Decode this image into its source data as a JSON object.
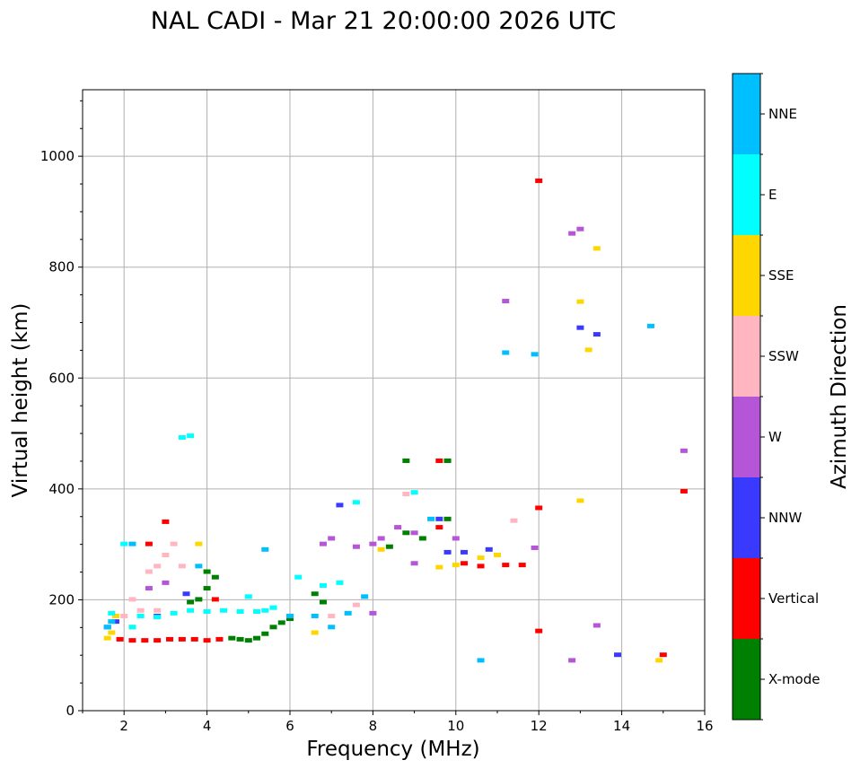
{
  "chart_data": {
    "type": "scatter",
    "title": "NAL CADI - Mar 21 20:00:00 2026 UTC",
    "xlabel": "Frequency (MHz)",
    "ylabel": "Virtual height (km)",
    "xlim": [
      1,
      16
    ],
    "ylim": [
      0,
      1120
    ],
    "xticks": [
      2,
      4,
      6,
      8,
      10,
      12,
      14,
      16
    ],
    "yticks": [
      0,
      200,
      400,
      600,
      800,
      1000
    ],
    "grid": true,
    "colorbar": {
      "label": "Azimuth Direction",
      "categories": [
        {
          "name": "X-mode",
          "color": "#008000"
        },
        {
          "name": "Vertical",
          "color": "#ff0000"
        },
        {
          "name": "NNW",
          "color": "#3a3aff"
        },
        {
          "name": "W",
          "color": "#b556d8"
        },
        {
          "name": "SSW",
          "color": "#ffb6c1"
        },
        {
          "name": "SSE",
          "color": "#ffd700"
        },
        {
          "name": "E",
          "color": "#00ffff"
        },
        {
          "name": "NNE",
          "color": "#00bfff"
        }
      ]
    },
    "series": [
      {
        "name": "X-mode",
        "points": [
          [
            4.6,
            130
          ],
          [
            4.8,
            128
          ],
          [
            5.0,
            126
          ],
          [
            5.2,
            130
          ],
          [
            5.4,
            138
          ],
          [
            5.6,
            150
          ],
          [
            5.8,
            158
          ],
          [
            6.0,
            165
          ],
          [
            4.2,
            240
          ],
          [
            4.0,
            220
          ],
          [
            3.8,
            200
          ],
          [
            3.6,
            195
          ],
          [
            6.6,
            210
          ],
          [
            6.8,
            195
          ],
          [
            8.8,
            450
          ],
          [
            9.8,
            450
          ],
          [
            9.8,
            345
          ],
          [
            8.4,
            295
          ],
          [
            8.8,
            320
          ],
          [
            9.2,
            310
          ],
          [
            4.0,
            250
          ]
        ]
      },
      {
        "name": "Vertical",
        "points": [
          [
            1.9,
            128
          ],
          [
            2.2,
            126
          ],
          [
            2.5,
            126
          ],
          [
            2.8,
            126
          ],
          [
            3.1,
            128
          ],
          [
            3.4,
            128
          ],
          [
            3.7,
            128
          ],
          [
            4.0,
            126
          ],
          [
            4.3,
            128
          ],
          [
            9.6,
            450
          ],
          [
            9.6,
            330
          ],
          [
            10.2,
            265
          ],
          [
            10.6,
            260
          ],
          [
            11.2,
            262
          ],
          [
            11.6,
            262
          ],
          [
            12.0,
            955
          ],
          [
            12.0,
            365
          ],
          [
            12.0,
            143
          ],
          [
            15.0,
            100
          ],
          [
            15.5,
            395
          ],
          [
            3.0,
            340
          ],
          [
            2.6,
            300
          ],
          [
            4.2,
            200
          ]
        ]
      },
      {
        "name": "NNW",
        "points": [
          [
            9.8,
            285
          ],
          [
            10.2,
            285
          ],
          [
            10.8,
            290
          ],
          [
            1.6,
            150
          ],
          [
            1.8,
            160
          ],
          [
            9.6,
            345
          ],
          [
            13.0,
            690
          ],
          [
            13.4,
            678
          ],
          [
            7.2,
            370
          ],
          [
            13.9,
            100
          ],
          [
            2.8,
            170
          ],
          [
            3.5,
            210
          ]
        ]
      },
      {
        "name": "W",
        "points": [
          [
            8.6,
            330
          ],
          [
            9.0,
            320
          ],
          [
            8.2,
            310
          ],
          [
            8.0,
            300
          ],
          [
            7.6,
            295
          ],
          [
            7.0,
            310
          ],
          [
            6.8,
            300
          ],
          [
            8.0,
            175
          ],
          [
            9.0,
            265
          ],
          [
            10.0,
            310
          ],
          [
            11.2,
            738
          ],
          [
            12.8,
            860
          ],
          [
            13.0,
            868
          ],
          [
            13.4,
            153
          ],
          [
            15.5,
            468
          ],
          [
            12.8,
            90
          ],
          [
            11.9,
            293
          ],
          [
            3.0,
            230
          ],
          [
            2.6,
            220
          ]
        ]
      },
      {
        "name": "SSW",
        "points": [
          [
            2.0,
            170
          ],
          [
            2.4,
            180
          ],
          [
            2.8,
            180
          ],
          [
            3.0,
            280
          ],
          [
            2.8,
            260
          ],
          [
            3.2,
            300
          ],
          [
            2.6,
            250
          ],
          [
            8.8,
            390
          ],
          [
            7.0,
            170
          ],
          [
            7.6,
            190
          ],
          [
            11.4,
            342
          ],
          [
            3.4,
            260
          ],
          [
            2.2,
            200
          ]
        ]
      },
      {
        "name": "SSE",
        "points": [
          [
            1.6,
            130
          ],
          [
            1.7,
            140
          ],
          [
            1.8,
            170
          ],
          [
            9.6,
            258
          ],
          [
            10.0,
            262
          ],
          [
            10.6,
            275
          ],
          [
            11.0,
            280
          ],
          [
            13.2,
            650
          ],
          [
            13.0,
            737
          ],
          [
            13.4,
            833
          ],
          [
            13.0,
            378
          ],
          [
            14.9,
            90
          ],
          [
            2.2,
            150
          ],
          [
            3.8,
            300
          ],
          [
            6.6,
            140
          ],
          [
            8.2,
            290
          ]
        ]
      },
      {
        "name": "E",
        "points": [
          [
            2.4,
            170
          ],
          [
            2.8,
            168
          ],
          [
            3.2,
            175
          ],
          [
            3.6,
            180
          ],
          [
            4.0,
            178
          ],
          [
            4.4,
            180
          ],
          [
            4.8,
            178
          ],
          [
            5.2,
            178
          ],
          [
            5.4,
            180
          ],
          [
            5.0,
            205
          ],
          [
            6.2,
            240
          ],
          [
            6.8,
            225
          ],
          [
            7.2,
            230
          ],
          [
            7.6,
            375
          ],
          [
            9.0,
            393
          ],
          [
            3.4,
            492
          ],
          [
            3.6,
            495
          ],
          [
            2.2,
            150
          ],
          [
            2.0,
            300
          ],
          [
            1.7,
            175
          ],
          [
            5.6,
            185
          ]
        ]
      },
      {
        "name": "NNE",
        "points": [
          [
            1.6,
            150
          ],
          [
            1.7,
            160
          ],
          [
            6.6,
            170
          ],
          [
            7.0,
            150
          ],
          [
            7.4,
            175
          ],
          [
            7.8,
            205
          ],
          [
            10.6,
            90
          ],
          [
            11.2,
            645
          ],
          [
            11.9,
            642
          ],
          [
            14.7,
            693
          ],
          [
            9.4,
            345
          ],
          [
            2.2,
            300
          ],
          [
            3.8,
            260
          ],
          [
            5.4,
            290
          ],
          [
            6.0,
            170
          ]
        ]
      }
    ]
  }
}
